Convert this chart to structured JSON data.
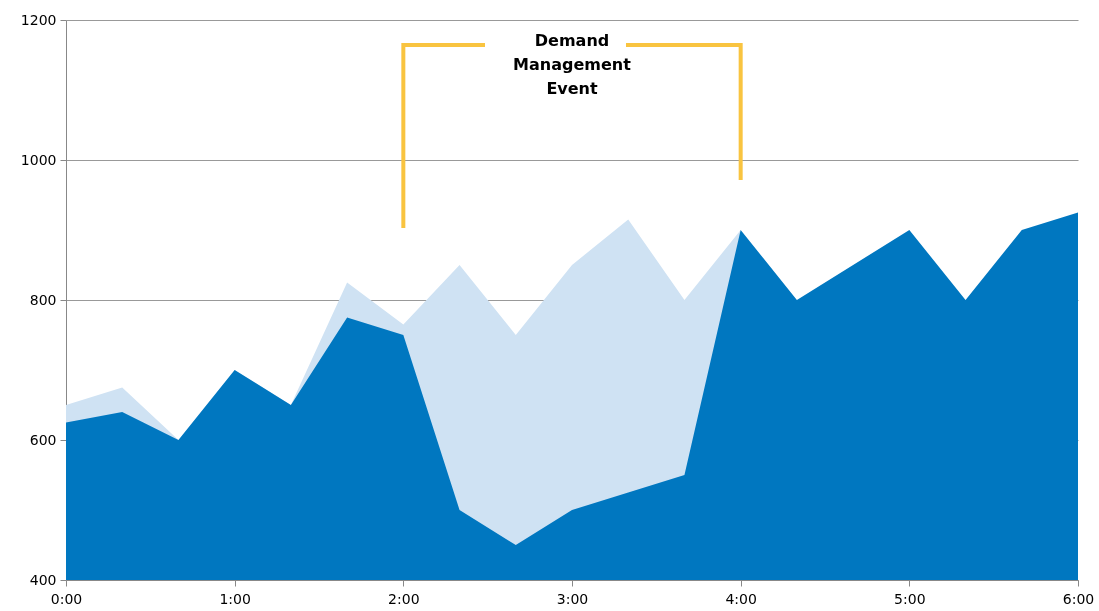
{
  "chart_data": {
    "type": "area",
    "x": [
      0,
      0.3333,
      0.6667,
      1,
      1.3333,
      1.6667,
      2,
      2.3333,
      2.6667,
      3,
      3.3333,
      3.6667,
      4,
      4.3333,
      4.6667,
      5,
      5.3333,
      5.6667,
      6
    ],
    "series": [
      {
        "color": "#cfe2f3",
        "values": [
          650,
          675,
          600,
          700,
          650,
          825,
          765,
          850,
          750,
          850,
          915,
          800,
          900,
          null,
          null,
          null,
          null,
          null,
          null
        ]
      },
      {
        "color": "#0077c0",
        "values": [
          625,
          640,
          600,
          700,
          650,
          775,
          750,
          500,
          450,
          500,
          525,
          550,
          900,
          800,
          850,
          900,
          800,
          900,
          925
        ]
      }
    ],
    "xlim": [
      0,
      6
    ],
    "xticks": [
      {
        "value": 0,
        "label": "0:00"
      },
      {
        "value": 1,
        "label": "1:00"
      },
      {
        "value": 2,
        "label": "2:00"
      },
      {
        "value": 3,
        "label": "3:00"
      },
      {
        "value": 4,
        "label": "4:00"
      },
      {
        "value": 5,
        "label": "5:00"
      },
      {
        "value": 6,
        "label": "6:00"
      }
    ],
    "ylim": [
      400,
      1200
    ],
    "yticks": [
      400,
      600,
      800,
      1000,
      1200
    ],
    "grid": "y",
    "annotations": [
      "Demand Management Event"
    ]
  }
}
